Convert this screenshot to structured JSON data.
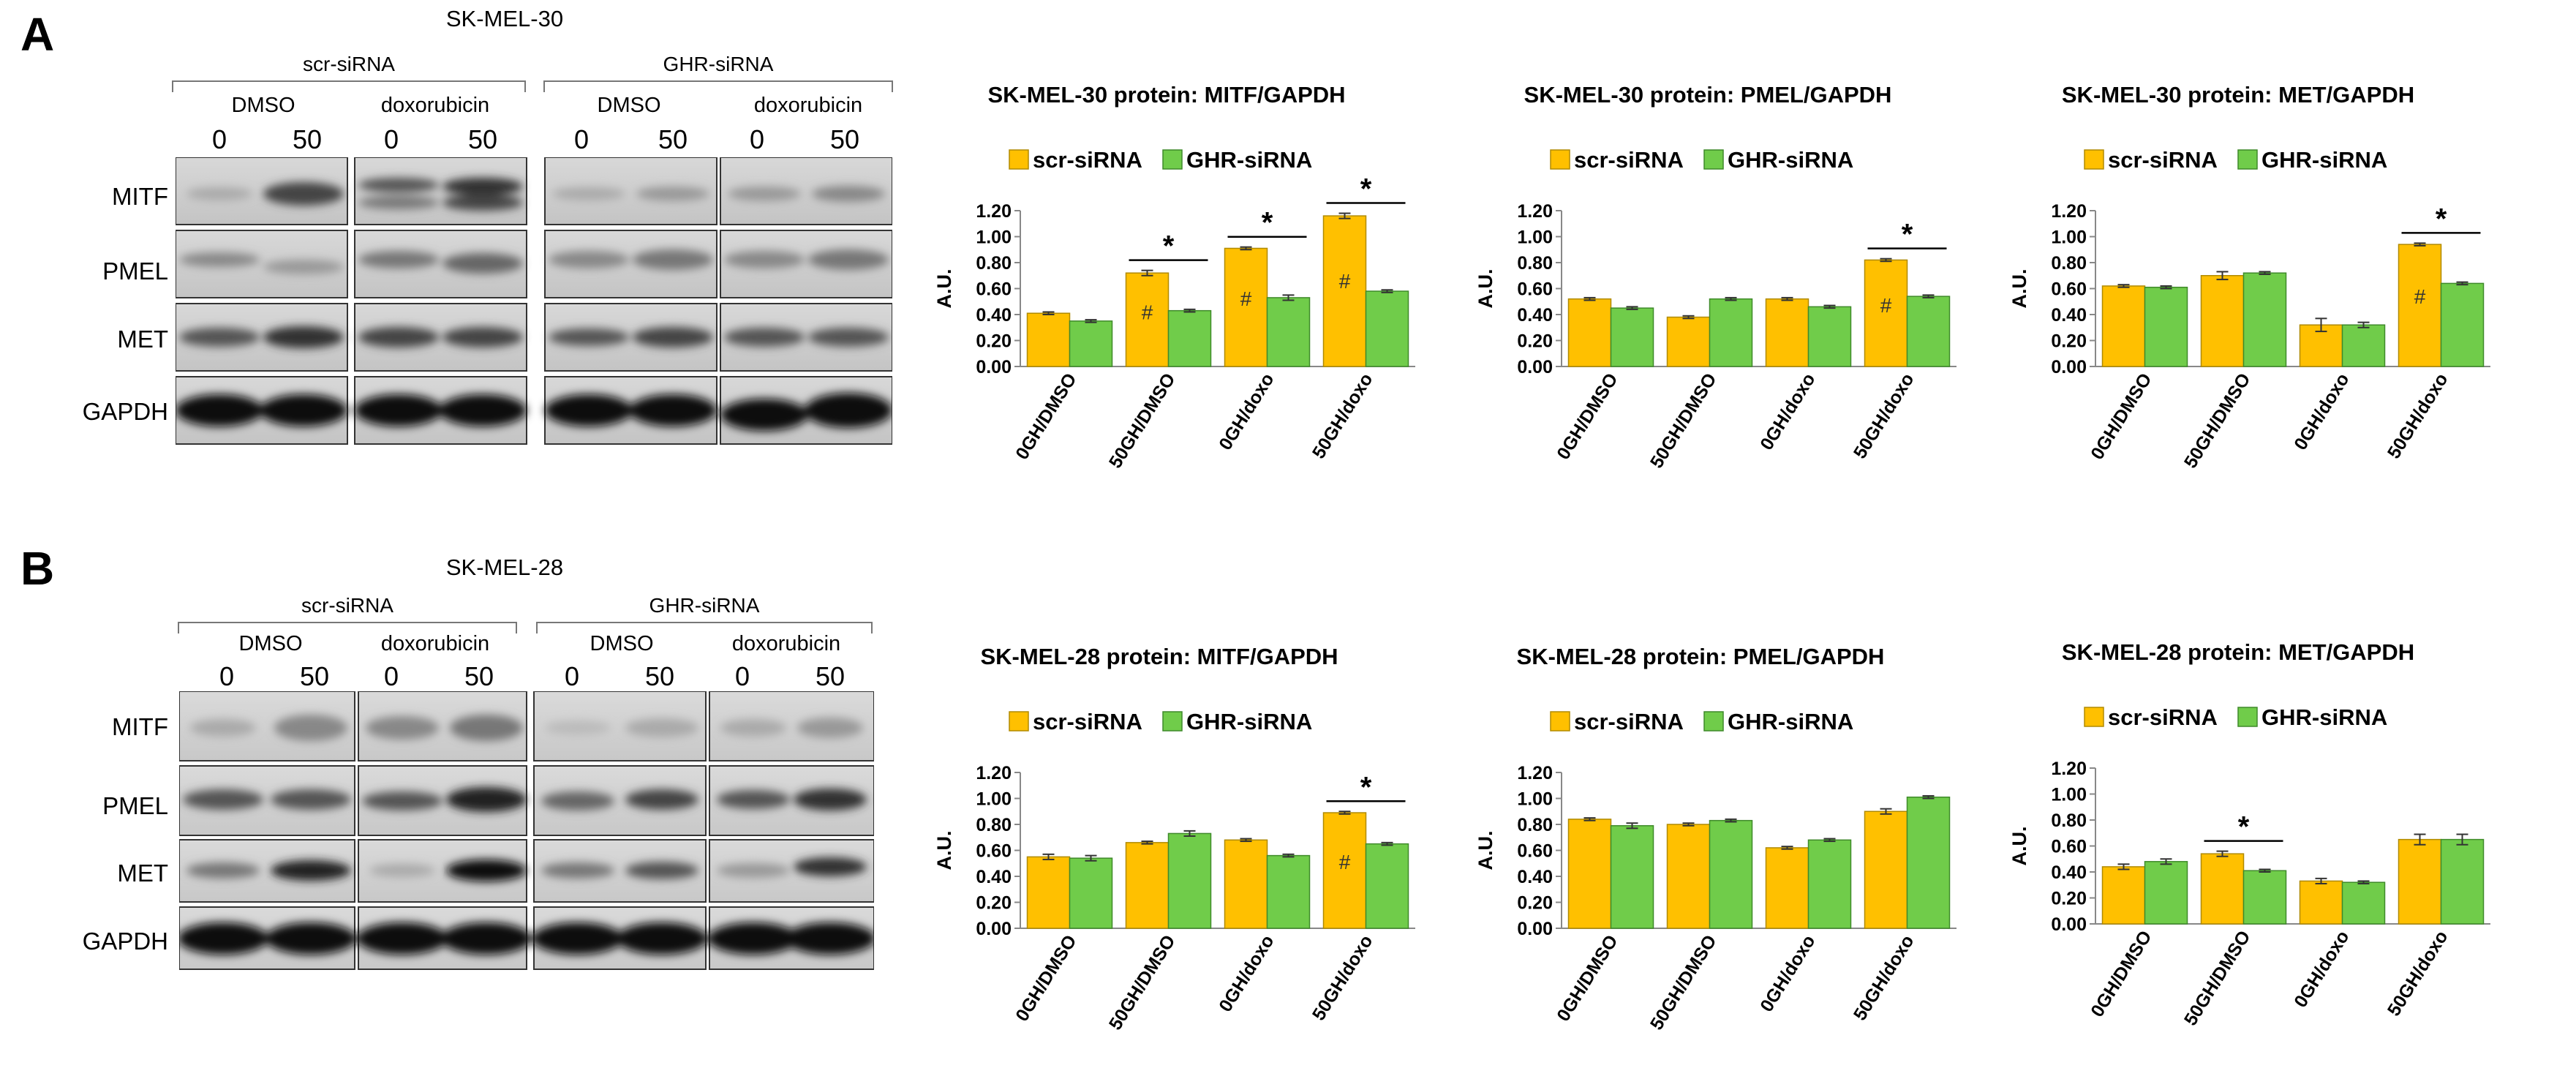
{
  "panels": [
    {
      "letter": "A",
      "cell_line": "SK-MEL-30",
      "groups": [
        "scr-siRNA",
        "GHR-siRNA"
      ],
      "treatments": [
        "DMSO",
        "doxorubicin",
        "DMSO",
        "doxorubicin"
      ],
      "doses": [
        "0",
        "50",
        "0",
        "50",
        "0",
        "50",
        "0",
        "50"
      ],
      "proteins": [
        "MITF",
        "PMEL",
        "MET",
        "GAPDH"
      ]
    },
    {
      "letter": "B",
      "cell_line": "SK-MEL-28",
      "groups": [
        "scr-siRNA",
        "GHR-siRNA"
      ],
      "treatments": [
        "DMSO",
        "doxorubicin",
        "DMSO",
        "doxorubicin"
      ],
      "doses": [
        "0",
        "50",
        "0",
        "50",
        "0",
        "50",
        "0",
        "50"
      ],
      "proteins": [
        "MITF",
        "PMEL",
        "MET",
        "GAPDH"
      ]
    }
  ],
  "colors": {
    "scr": "#FFC000",
    "ghr": "#70CC4A",
    "scr_edge": "#B08A00",
    "ghr_edge": "#3F8A2A"
  },
  "chart_data": [
    {
      "type": "bar",
      "title": "SK-MEL-30 protein: MITF/GAPDH",
      "categories": [
        "0GH/DMSO",
        "50GH/DMSO",
        "0GH/doxo",
        "50GH/doxo"
      ],
      "series": [
        {
          "name": "scr-siRNA",
          "values": [
            0.41,
            0.72,
            0.91,
            1.16
          ],
          "errors": [
            0.01,
            0.02,
            0.01,
            0.02
          ]
        },
        {
          "name": "GHR-siRNA",
          "values": [
            0.35,
            0.43,
            0.53,
            0.58
          ],
          "errors": [
            0.01,
            0.01,
            0.02,
            0.01
          ]
        }
      ],
      "ylabel": "A.U.",
      "ylim": [
        0,
        1.2
      ],
      "yticks": [
        "0.00",
        "0.20",
        "0.40",
        "0.60",
        "0.80",
        "1.00",
        "1.20"
      ],
      "hash": [
        1,
        2,
        3
      ],
      "sig": [
        1,
        2,
        3
      ],
      "sig_symbol": "*",
      "hash_symbol": "#"
    },
    {
      "type": "bar",
      "title": "SK-MEL-30 protein: PMEL/GAPDH",
      "categories": [
        "0GH/DMSO",
        "50GH/DMSO",
        "0GH/doxo",
        "50GH/doxo"
      ],
      "series": [
        {
          "name": "scr-siRNA",
          "values": [
            0.52,
            0.38,
            0.52,
            0.82
          ],
          "errors": [
            0.01,
            0.01,
            0.01,
            0.01
          ]
        },
        {
          "name": "GHR-siRNA",
          "values": [
            0.45,
            0.52,
            0.46,
            0.54
          ],
          "errors": [
            0.01,
            0.01,
            0.01,
            0.01
          ]
        }
      ],
      "ylabel": "A.U.",
      "ylim": [
        0,
        1.2
      ],
      "yticks": [
        "0.00",
        "0.20",
        "0.40",
        "0.60",
        "0.80",
        "1.00",
        "1.20"
      ],
      "hash": [
        3
      ],
      "sig": [
        3
      ],
      "sig_symbol": "*",
      "hash_symbol": "#"
    },
    {
      "type": "bar",
      "title": "SK-MEL-30 protein: MET/GAPDH",
      "categories": [
        "0GH/DMSO",
        "50GH/DMSO",
        "0GH/doxo",
        "50GH/doxo"
      ],
      "series": [
        {
          "name": "scr-siRNA",
          "values": [
            0.62,
            0.7,
            0.32,
            0.94
          ],
          "errors": [
            0.01,
            0.03,
            0.05,
            0.01
          ]
        },
        {
          "name": "GHR-siRNA",
          "values": [
            0.61,
            0.72,
            0.32,
            0.64
          ],
          "errors": [
            0.01,
            0.01,
            0.02,
            0.01
          ]
        }
      ],
      "ylabel": "A.U.",
      "ylim": [
        0,
        1.2
      ],
      "yticks": [
        "0.00",
        "0.20",
        "0.40",
        "0.60",
        "0.80",
        "1.00",
        "1.20"
      ],
      "hash": [
        3
      ],
      "sig": [
        3
      ],
      "sig_symbol": "*",
      "hash_symbol": "#"
    },
    {
      "type": "bar",
      "title": "SK-MEL-28 protein: MITF/GAPDH",
      "categories": [
        "0GH/DMSO",
        "50GH/DMSO",
        "0GH/doxo",
        "50GH/doxo"
      ],
      "series": [
        {
          "name": "scr-siRNA",
          "values": [
            0.55,
            0.66,
            0.68,
            0.89
          ],
          "errors": [
            0.02,
            0.01,
            0.01,
            0.01
          ]
        },
        {
          "name": "GHR-siRNA",
          "values": [
            0.54,
            0.73,
            0.56,
            0.65
          ],
          "errors": [
            0.02,
            0.02,
            0.01,
            0.01
          ]
        }
      ],
      "ylabel": "A.U.",
      "ylim": [
        0,
        1.2
      ],
      "yticks": [
        "0.00",
        "0.20",
        "0.40",
        "0.60",
        "0.80",
        "1.00",
        "1.20"
      ],
      "hash": [
        3
      ],
      "sig": [
        3
      ],
      "sig_symbol": "*",
      "hash_symbol": "#"
    },
    {
      "type": "bar",
      "title": "SK-MEL-28 protein: PMEL/GAPDH",
      "categories": [
        "0GH/DMSO",
        "50GH/DMSO",
        "0GH/doxo",
        "50GH/doxo"
      ],
      "series": [
        {
          "name": "scr-siRNA",
          "values": [
            0.84,
            0.8,
            0.62,
            0.9
          ],
          "errors": [
            0.01,
            0.01,
            0.01,
            0.02
          ]
        },
        {
          "name": "GHR-siRNA",
          "values": [
            0.79,
            0.83,
            0.68,
            1.01
          ],
          "errors": [
            0.02,
            0.01,
            0.01,
            0.01
          ]
        }
      ],
      "ylabel": "A.U.",
      "ylim": [
        0,
        1.2
      ],
      "yticks": [
        "0.00",
        "0.20",
        "0.40",
        "0.60",
        "0.80",
        "1.00",
        "1.20"
      ],
      "hash": [],
      "sig": [],
      "sig_symbol": "*",
      "hash_symbol": "#"
    },
    {
      "type": "bar",
      "title": "SK-MEL-28 protein: MET/GAPDH",
      "categories": [
        "0GH/DMSO",
        "50GH/DMSO",
        "0GH/doxo",
        "50GH/doxo"
      ],
      "series": [
        {
          "name": "scr-siRNA",
          "values": [
            0.44,
            0.54,
            0.33,
            0.65
          ],
          "errors": [
            0.02,
            0.02,
            0.02,
            0.04
          ]
        },
        {
          "name": "GHR-siRNA",
          "values": [
            0.48,
            0.41,
            0.32,
            0.65
          ],
          "errors": [
            0.02,
            0.01,
            0.01,
            0.04
          ]
        }
      ],
      "ylabel": "A.U.",
      "ylim": [
        0,
        1.2
      ],
      "yticks": [
        "0.00",
        "0.20",
        "0.40",
        "0.60",
        "0.80",
        "1.00",
        "1.20"
      ],
      "hash": [],
      "sig": [
        1
      ],
      "sig_symbol": "*",
      "hash_symbol": "#"
    }
  ]
}
